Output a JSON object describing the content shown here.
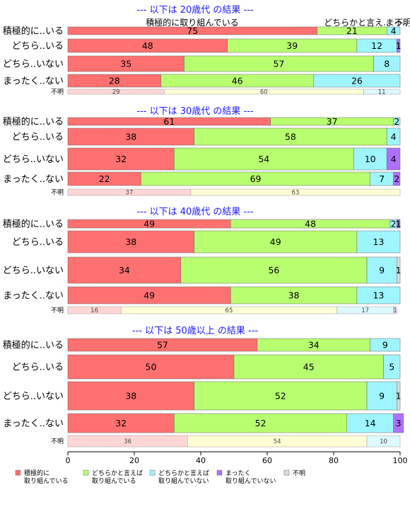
{
  "chart_data": {
    "type": "bar",
    "orientation": "horizontal",
    "stacked": true,
    "xlim": [
      0,
      100
    ],
    "xticks": [
      0,
      20,
      40,
      60,
      80,
      100
    ],
    "categories_legend": [
      {
        "key": "c1",
        "line1": "積極的に",
        "line2": "取り組んでいる",
        "color": "#ff7070"
      },
      {
        "key": "c2",
        "line1": "どちらかと言えば",
        "line2": "取り組んでいる",
        "color": "#b8ff70"
      },
      {
        "key": "c3",
        "line1": "どちらかと言えば",
        "line2": "取り組んでいない",
        "color": "#9ff5ff"
      },
      {
        "key": "c4",
        "line1": "まったく",
        "line2": "取り組んでいない",
        "color": "#b070ff"
      },
      {
        "key": "c5",
        "line1": "不明",
        "line2": "",
        "color": "#dcdcdc"
      }
    ],
    "unknown_colors": [
      "#ffd6d6",
      "#ffffd6",
      "#dcfaff",
      "#ecd6ff",
      "#eeeeee"
    ],
    "top_labels": [
      "積極的に取り組んでいる",
      "どちらかと言え..",
      "まっ..",
      "不明"
    ],
    "panels": [
      {
        "title": "--- 以下は 20歳代 の結果 ---",
        "rows": [
          {
            "label": "積極的に..いる",
            "values": [
              75,
              21,
              4,
              0,
              0
            ],
            "labels": [
              "75",
              "21",
              "4",
              "",
              ""
            ]
          },
          {
            "label": "どちら..いる",
            "values": [
              48,
              39,
              12,
              1,
              0
            ],
            "labels": [
              "48",
              "39",
              "12",
              "1",
              ""
            ]
          },
          {
            "label": "どちら..いない",
            "values": [
              35,
              57,
              8,
              0,
              0
            ],
            "labels": [
              "35",
              "57",
              "8",
              "",
              ""
            ]
          },
          {
            "label": "まったく..ない",
            "values": [
              28,
              46,
              26,
              0,
              0
            ],
            "labels": [
              "28",
              "46",
              "26",
              "",
              ""
            ]
          }
        ],
        "unknown": {
          "label": "不明",
          "values": [
            29,
            60,
            11,
            0,
            0
          ],
          "labels": [
            "29",
            "60",
            "11",
            "",
            ""
          ]
        }
      },
      {
        "title": "--- 以下は 30歳代 の結果 ---",
        "rows": [
          {
            "label": "積極的に..いる",
            "values": [
              61,
              37,
              2,
              0,
              0
            ],
            "labels": [
              "61",
              "37",
              "2",
              "",
              ""
            ]
          },
          {
            "label": "どちら..いる",
            "values": [
              38,
              58,
              4,
              0,
              0
            ],
            "labels": [
              "38",
              "58",
              "4",
              "",
              ""
            ]
          },
          {
            "label": "どちら..いない",
            "values": [
              32,
              54,
              10,
              4,
              0
            ],
            "labels": [
              "32",
              "54",
              "10",
              "4",
              ""
            ]
          },
          {
            "label": "まったく..ない",
            "values": [
              22,
              69,
              7,
              2,
              0
            ],
            "labels": [
              "22",
              "69",
              "7",
              "2",
              ""
            ]
          }
        ],
        "unknown": {
          "label": "不明",
          "values": [
            37,
            63,
            0,
            0,
            0
          ],
          "labels": [
            "37",
            "63",
            "",
            "",
            ""
          ]
        }
      },
      {
        "title": "--- 以下は 40歳代 の結果 ---",
        "rows": [
          {
            "label": "積極的に..いる",
            "values": [
              49,
              48,
              2,
              1,
              0
            ],
            "labels": [
              "49",
              "48",
              "2",
              "1",
              ""
            ]
          },
          {
            "label": "どちら..いる",
            "values": [
              38,
              49,
              13,
              0,
              0
            ],
            "labels": [
              "38",
              "49",
              "13",
              "",
              ""
            ]
          },
          {
            "label": "どちら..いない",
            "values": [
              34,
              56,
              9,
              0,
              1
            ],
            "labels": [
              "34",
              "56",
              "9",
              "",
              "1"
            ]
          },
          {
            "label": "まったく..ない",
            "values": [
              49,
              38,
              13,
              0,
              0
            ],
            "labels": [
              "49",
              "38",
              "13",
              "",
              ""
            ]
          }
        ],
        "unknown": {
          "label": "不明",
          "values": [
            16,
            65,
            17,
            1,
            0
          ],
          "labels": [
            "16",
            "65",
            "17",
            "1",
            ""
          ]
        }
      },
      {
        "title": "--- 以下は 50歳以上 の結果 ---",
        "rows": [
          {
            "label": "積極的に..いる",
            "values": [
              57,
              34,
              9,
              0,
              0
            ],
            "labels": [
              "57",
              "34",
              "9",
              "",
              ""
            ]
          },
          {
            "label": "どちら..いる",
            "values": [
              50,
              45,
              5,
              0,
              0
            ],
            "labels": [
              "50",
              "45",
              "5",
              "",
              ""
            ]
          },
          {
            "label": "どちら..いない",
            "values": [
              38,
              52,
              9,
              0,
              1
            ],
            "labels": [
              "38",
              "52",
              "9",
              "",
              "1"
            ]
          },
          {
            "label": "まったく..ない",
            "values": [
              32,
              52,
              14,
              3,
              0
            ],
            "labels": [
              "32",
              "52",
              "14",
              "3",
              ""
            ]
          }
        ],
        "unknown": {
          "label": "不明",
          "values": [
            36,
            54,
            10,
            0,
            0
          ],
          "labels": [
            "36",
            "54",
            "10",
            "",
            ""
          ]
        }
      }
    ]
  }
}
